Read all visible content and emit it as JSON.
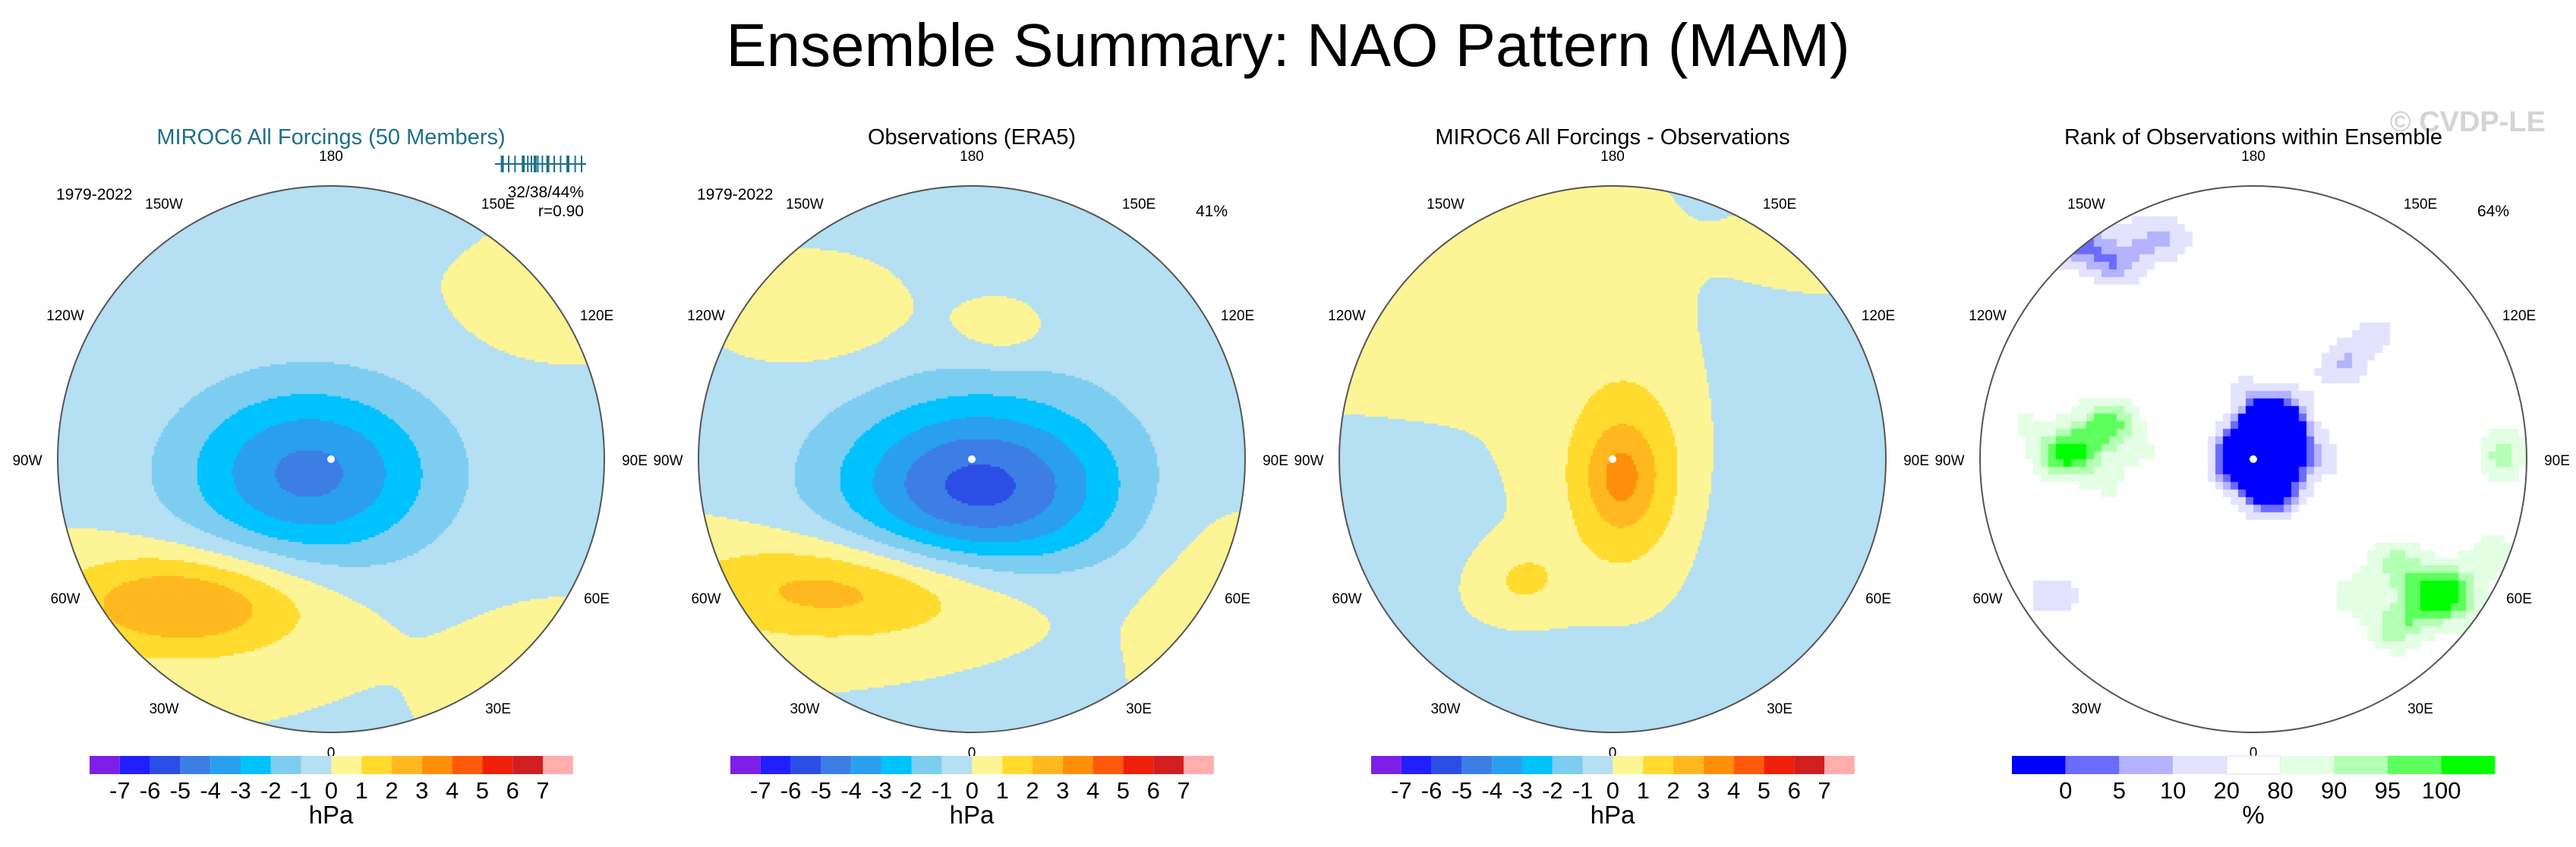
{
  "title": "Ensemble Summary: NAO Pattern (MAM)",
  "watermark": "© CVDP-LE",
  "colors": {
    "anomaly_levels": [
      "#7d1fe6",
      "#1f1fff",
      "#2b4fe6",
      "#3d7ee6",
      "#2a9ff0",
      "#00c2ff",
      "#7dcdf0",
      "#b5dff2",
      "#fdf495",
      "#ffdb2e",
      "#ffb81f",
      "#ff8f0a",
      "#ff5a0a",
      "#f01f0a",
      "#d11f1f",
      "#ffadad"
    ],
    "rank_levels": [
      "#0000ff",
      "#6b6bff",
      "#b3b3ff",
      "#e3e3ff",
      "#ffffff",
      "#e3ffe3",
      "#b3ffb3",
      "#5cff5c",
      "#00ff00"
    ],
    "ensemble_text": "#1f6f8b",
    "coast": "#333333",
    "circle": "#555555"
  },
  "chart_data": [
    {
      "type": "heatmap",
      "projection": "north-polar-stereographic",
      "title": "MIROC6 All Forcings (50 Members)",
      "left_label": "1979-2022",
      "right_label": "32/38/44%",
      "right_label_2": "r=0.90",
      "rank_ticks": [
        0.08,
        0.15,
        0.22,
        0.31,
        0.36,
        0.4,
        0.44,
        0.47,
        0.52,
        0.58,
        0.65,
        0.72,
        0.8,
        0.88,
        0.95
      ],
      "lon_labels": [
        "180",
        "150W",
        "150E",
        "120W",
        "120E",
        "90W",
        "90E",
        "60W",
        "60E",
        "30W",
        "30E",
        "0"
      ],
      "colorbar_ticks": [
        "-7",
        "-6",
        "-5",
        "-4",
        "-3",
        "-2",
        "-1",
        "0",
        "1",
        "2",
        "3",
        "4",
        "5",
        "6",
        "7"
      ],
      "colorbar_units": "hPa",
      "field": "sim"
    },
    {
      "type": "heatmap",
      "projection": "north-polar-stereographic",
      "title": "Observations (ERA5)",
      "left_label": "1979-2022",
      "right_label": "41%",
      "lon_labels": [
        "180",
        "150W",
        "150E",
        "120W",
        "120E",
        "90W",
        "90E",
        "60W",
        "60E",
        "30W",
        "30E",
        "0"
      ],
      "colorbar_ticks": [
        "-7",
        "-6",
        "-5",
        "-4",
        "-3",
        "-2",
        "-1",
        "0",
        "1",
        "2",
        "3",
        "4",
        "5",
        "6",
        "7"
      ],
      "colorbar_units": "hPa",
      "field": "obs"
    },
    {
      "type": "heatmap",
      "projection": "north-polar-stereographic",
      "title": "MIROC6 All Forcings - Observations",
      "lon_labels": [
        "180",
        "150W",
        "150E",
        "120W",
        "120E",
        "90W",
        "90E",
        "60W",
        "60E",
        "30W",
        "30E",
        "0"
      ],
      "colorbar_ticks": [
        "-7",
        "-6",
        "-5",
        "-4",
        "-3",
        "-2",
        "-1",
        "0",
        "1",
        "2",
        "3",
        "4",
        "5",
        "6",
        "7"
      ],
      "colorbar_units": "hPa",
      "field": "diff"
    },
    {
      "type": "heatmap",
      "projection": "north-polar-stereographic",
      "title": "Rank of Observations within Ensemble",
      "right_label": "64%",
      "lon_labels": [
        "180",
        "150W",
        "150E",
        "120W",
        "120E",
        "90W",
        "90E",
        "60W",
        "60E",
        "30W",
        "30E",
        "0"
      ],
      "colorbar_ticks": [
        "0",
        "5",
        "10",
        "20",
        "80",
        "90",
        "95",
        "100"
      ],
      "colorbar_units": "%",
      "field": "rank"
    }
  ]
}
